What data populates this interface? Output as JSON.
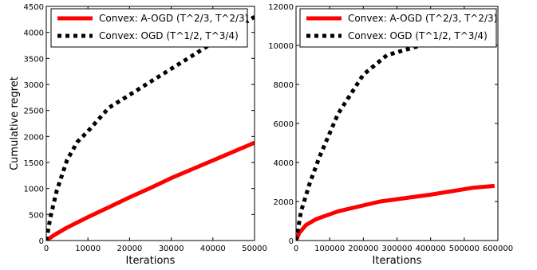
{
  "chart_data": [
    {
      "type": "line",
      "xlabel": "Iterations",
      "ylabel": "Cumulative regret",
      "xlim": [
        0,
        50000
      ],
      "ylim": [
        0,
        4500
      ],
      "xticks": [
        0,
        10000,
        20000,
        30000,
        40000,
        50000
      ],
      "yticks": [
        0,
        500,
        1000,
        1500,
        2000,
        2500,
        3000,
        3500,
        4000,
        4500
      ],
      "grid": false,
      "legend_position": "top",
      "series": [
        {
          "name": "Convex: A-OGD (T^2/3, T^2/3)",
          "color": "#ff0000",
          "style": "solid",
          "x": [
            0,
            2000,
            5000,
            10000,
            15000,
            20000,
            25000,
            30000,
            35000,
            40000,
            45000,
            50000
          ],
          "y": [
            0,
            110,
            250,
            450,
            640,
            830,
            1010,
            1200,
            1370,
            1540,
            1710,
            1880
          ]
        },
        {
          "name": "Convex: OGD (T^1/2, T^3/4)",
          "color": "#000000",
          "style": "dotted",
          "x": [
            0,
            1000,
            2500,
            5000,
            7500,
            10000,
            15000,
            20000,
            25000,
            30000,
            35000,
            40000,
            45000,
            50000
          ],
          "y": [
            0,
            450,
            950,
            1550,
            1900,
            2100,
            2550,
            2800,
            3050,
            3300,
            3550,
            3800,
            4050,
            4300
          ]
        }
      ]
    },
    {
      "type": "line",
      "xlabel": "Iterations",
      "ylabel": "",
      "xlim": [
        0,
        600000
      ],
      "ylim": [
        0,
        12000
      ],
      "xticks": [
        0,
        100000,
        200000,
        300000,
        400000,
        500000,
        600000
      ],
      "yticks": [
        0,
        2000,
        4000,
        6000,
        8000,
        10000,
        12000
      ],
      "grid": false,
      "legend_position": "top",
      "series": [
        {
          "name": "Convex: A-OGD (T^2/3, T^2/3)",
          "color": "#ff0000",
          "style": "solid",
          "x": [
            0,
            10000,
            30000,
            60000,
            125000,
            250000,
            400000,
            525000,
            590000
          ],
          "y": [
            0,
            400,
            800,
            1100,
            1500,
            2000,
            2350,
            2700,
            2800
          ]
        },
        {
          "name": "Convex: OGD (T^1/2, T^3/4)",
          "color": "#000000",
          "style": "dotted",
          "x": [
            0,
            15000,
            40000,
            70000,
            125000,
            200000,
            270000,
            350000,
            420000
          ],
          "y": [
            0,
            1500,
            2900,
            4300,
            6500,
            8500,
            9500,
            9900,
            10200
          ]
        }
      ]
    }
  ]
}
